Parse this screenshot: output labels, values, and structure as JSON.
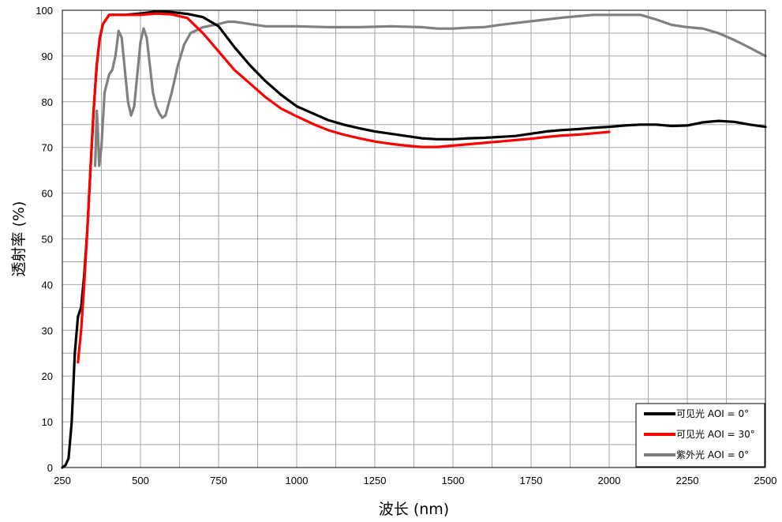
{
  "chart_data": {
    "type": "line",
    "title": "",
    "xlabel": "波长 (nm)",
    "ylabel": "透射率 (%)",
    "xlim": [
      250,
      2500
    ],
    "ylim": [
      0,
      100
    ],
    "xticks": [
      250,
      500,
      750,
      1000,
      1250,
      1500,
      1750,
      2000,
      2250,
      2500
    ],
    "yticks": [
      0,
      10,
      20,
      30,
      40,
      50,
      60,
      70,
      80,
      90,
      100
    ],
    "grid": true,
    "legend_position": "bottom-right",
    "series": [
      {
        "name": "可见光 AOI = 0°",
        "color": "#000000",
        "points": [
          [
            250,
            0
          ],
          [
            260,
            0.5
          ],
          [
            270,
            2
          ],
          [
            280,
            10
          ],
          [
            290,
            25
          ],
          [
            300,
            33
          ],
          [
            310,
            35
          ],
          [
            320,
            42
          ],
          [
            330,
            52
          ],
          [
            340,
            65
          ],
          [
            350,
            78
          ],
          [
            360,
            88
          ],
          [
            370,
            94
          ],
          [
            380,
            97
          ],
          [
            400,
            99
          ],
          [
            450,
            99
          ],
          [
            500,
            99.3
          ],
          [
            550,
            99.7
          ],
          [
            600,
            99.6
          ],
          [
            650,
            99.2
          ],
          [
            700,
            98.5
          ],
          [
            750,
            96.5
          ],
          [
            800,
            92
          ],
          [
            850,
            88
          ],
          [
            900,
            84.5
          ],
          [
            950,
            81.5
          ],
          [
            1000,
            79
          ],
          [
            1050,
            77.5
          ],
          [
            1100,
            76
          ],
          [
            1150,
            75
          ],
          [
            1200,
            74.2
          ],
          [
            1250,
            73.5
          ],
          [
            1300,
            73
          ],
          [
            1350,
            72.5
          ],
          [
            1400,
            72
          ],
          [
            1450,
            71.8
          ],
          [
            1500,
            71.8
          ],
          [
            1550,
            72
          ],
          [
            1600,
            72.1
          ],
          [
            1650,
            72.3
          ],
          [
            1700,
            72.5
          ],
          [
            1750,
            73
          ],
          [
            1800,
            73.5
          ],
          [
            1850,
            73.8
          ],
          [
            1900,
            74
          ],
          [
            1950,
            74.3
          ],
          [
            2000,
            74.5
          ],
          [
            2050,
            74.8
          ],
          [
            2100,
            75
          ],
          [
            2150,
            75
          ],
          [
            2200,
            74.7
          ],
          [
            2250,
            74.8
          ],
          [
            2300,
            75.5
          ],
          [
            2350,
            75.8
          ],
          [
            2400,
            75.6
          ],
          [
            2450,
            75
          ],
          [
            2500,
            74.5
          ]
        ]
      },
      {
        "name": "可见光 AOI = 30°",
        "color": "#ff0000",
        "points": [
          [
            300,
            23
          ],
          [
            310,
            30
          ],
          [
            320,
            40
          ],
          [
            330,
            52
          ],
          [
            340,
            65
          ],
          [
            350,
            78
          ],
          [
            360,
            88
          ],
          [
            370,
            94
          ],
          [
            380,
            97
          ],
          [
            400,
            99
          ],
          [
            450,
            99
          ],
          [
            500,
            99
          ],
          [
            550,
            99.3
          ],
          [
            600,
            99.1
          ],
          [
            650,
            98.3
          ],
          [
            700,
            95
          ],
          [
            750,
            91
          ],
          [
            800,
            87
          ],
          [
            850,
            84
          ],
          [
            900,
            81
          ],
          [
            950,
            78.5
          ],
          [
            1000,
            76.8
          ],
          [
            1050,
            75.2
          ],
          [
            1100,
            73.8
          ],
          [
            1150,
            72.8
          ],
          [
            1200,
            72
          ],
          [
            1250,
            71.3
          ],
          [
            1300,
            70.8
          ],
          [
            1350,
            70.4
          ],
          [
            1400,
            70.1
          ],
          [
            1450,
            70.1
          ],
          [
            1500,
            70.4
          ],
          [
            1550,
            70.7
          ],
          [
            1600,
            71
          ],
          [
            1650,
            71.3
          ],
          [
            1700,
            71.6
          ],
          [
            1750,
            71.9
          ],
          [
            1800,
            72.3
          ],
          [
            1850,
            72.6
          ],
          [
            1900,
            72.8
          ],
          [
            1950,
            73.1
          ],
          [
            2000,
            73.4
          ]
        ]
      },
      {
        "name": "紫外光 AOI = 0°",
        "color": "#808080",
        "points": [
          [
            355,
            66
          ],
          [
            360,
            78
          ],
          [
            363,
            75
          ],
          [
            368,
            66
          ],
          [
            375,
            70
          ],
          [
            385,
            82
          ],
          [
            400,
            86
          ],
          [
            410,
            87
          ],
          [
            420,
            90
          ],
          [
            430,
            95.5
          ],
          [
            440,
            94
          ],
          [
            450,
            87
          ],
          [
            460,
            80
          ],
          [
            470,
            77
          ],
          [
            480,
            79
          ],
          [
            490,
            86
          ],
          [
            500,
            93
          ],
          [
            510,
            96
          ],
          [
            520,
            94
          ],
          [
            530,
            88
          ],
          [
            540,
            82
          ],
          [
            550,
            79
          ],
          [
            560,
            77.5
          ],
          [
            570,
            76.5
          ],
          [
            580,
            77
          ],
          [
            600,
            82
          ],
          [
            620,
            88
          ],
          [
            640,
            92.5
          ],
          [
            660,
            95
          ],
          [
            700,
            96.3
          ],
          [
            750,
            97
          ],
          [
            780,
            97.5
          ],
          [
            800,
            97.5
          ],
          [
            850,
            97
          ],
          [
            900,
            96.5
          ],
          [
            1000,
            96.5
          ],
          [
            1100,
            96.3
          ],
          [
            1200,
            96.3
          ],
          [
            1300,
            96.5
          ],
          [
            1400,
            96.3
          ],
          [
            1450,
            96
          ],
          [
            1500,
            96
          ],
          [
            1550,
            96.2
          ],
          [
            1600,
            96.3
          ],
          [
            1650,
            96.8
          ],
          [
            1700,
            97.2
          ],
          [
            1750,
            97.6
          ],
          [
            1800,
            98
          ],
          [
            1850,
            98.4
          ],
          [
            1900,
            98.7
          ],
          [
            1950,
            99
          ],
          [
            2000,
            99
          ],
          [
            2050,
            99
          ],
          [
            2100,
            99
          ],
          [
            2150,
            98
          ],
          [
            2200,
            96.8
          ],
          [
            2250,
            96.3
          ],
          [
            2300,
            96
          ],
          [
            2350,
            95
          ],
          [
            2400,
            93.5
          ],
          [
            2450,
            91.8
          ],
          [
            2500,
            90
          ]
        ]
      }
    ]
  }
}
